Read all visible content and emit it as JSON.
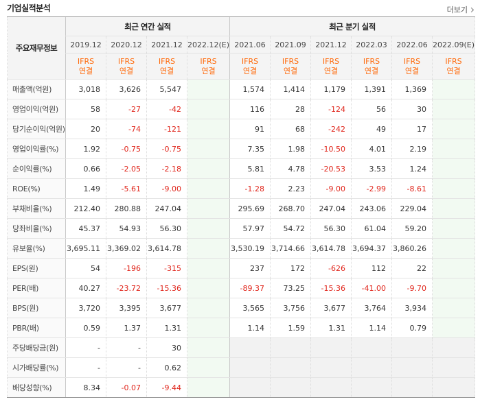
{
  "title": "기업실적분석",
  "more_label": "더보기",
  "header": {
    "row_label": "주요재무정보",
    "annual_title": "최근 연간 실적",
    "quarter_title": "최근 분기 실적",
    "annual_periods": [
      "2019.12",
      "2020.12",
      "2021.12",
      "2022.12(E)"
    ],
    "quarter_periods": [
      "2021.06",
      "2021.09",
      "2021.12",
      "2022.03",
      "2022.06",
      "2022.09(E)"
    ],
    "ifrs": "IFRS",
    "consolidated": "연결"
  },
  "rows": [
    {
      "label": "매출액(억원)",
      "annual": [
        "3,018",
        "3,626",
        "5,547",
        ""
      ],
      "quarter": [
        "1,574",
        "1,414",
        "1,179",
        "1,391",
        "1,369",
        ""
      ]
    },
    {
      "label": "영업이익(억원)",
      "annual": [
        "58",
        "-27",
        "-42",
        ""
      ],
      "quarter": [
        "116",
        "28",
        "-124",
        "56",
        "30",
        ""
      ]
    },
    {
      "label": "당기순이익(억원)",
      "annual": [
        "20",
        "-74",
        "-121",
        ""
      ],
      "quarter": [
        "91",
        "68",
        "-242",
        "49",
        "17",
        ""
      ]
    },
    {
      "label": "영업이익률(%)",
      "annual": [
        "1.92",
        "-0.75",
        "-0.75",
        ""
      ],
      "quarter": [
        "7.35",
        "1.98",
        "-10.50",
        "4.01",
        "2.19",
        ""
      ]
    },
    {
      "label": "순이익률(%)",
      "annual": [
        "0.66",
        "-2.05",
        "-2.18",
        ""
      ],
      "quarter": [
        "5.81",
        "4.78",
        "-20.53",
        "3.53",
        "1.24",
        ""
      ]
    },
    {
      "label": "ROE(%)",
      "annual": [
        "1.49",
        "-5.61",
        "-9.00",
        ""
      ],
      "quarter": [
        "-1.28",
        "2.23",
        "-9.00",
        "-2.99",
        "-8.61",
        ""
      ]
    },
    {
      "label": "부채비율(%)",
      "annual": [
        "212.40",
        "280.88",
        "247.04",
        ""
      ],
      "quarter": [
        "295.69",
        "268.70",
        "247.04",
        "243.06",
        "229.04",
        ""
      ]
    },
    {
      "label": "당좌비율(%)",
      "annual": [
        "45.37",
        "54.93",
        "56.30",
        ""
      ],
      "quarter": [
        "57.97",
        "54.72",
        "56.30",
        "61.04",
        "59.20",
        ""
      ]
    },
    {
      "label": "유보율(%)",
      "annual": [
        "3,695.11",
        "3,369.02",
        "3,614.78",
        ""
      ],
      "quarter": [
        "3,530.19",
        "3,714.66",
        "3,614.78",
        "3,694.37",
        "3,860.26",
        ""
      ]
    },
    {
      "label": "EPS(원)",
      "annual": [
        "54",
        "-196",
        "-315",
        ""
      ],
      "quarter": [
        "237",
        "172",
        "-626",
        "112",
        "22",
        ""
      ]
    },
    {
      "label": "PER(배)",
      "annual": [
        "40.27",
        "-23.72",
        "-15.36",
        ""
      ],
      "quarter": [
        "-89.37",
        "73.25",
        "-15.36",
        "-41.00",
        "-9.70",
        ""
      ]
    },
    {
      "label": "BPS(원)",
      "annual": [
        "3,720",
        "3,395",
        "3,677",
        ""
      ],
      "quarter": [
        "3,565",
        "3,756",
        "3,677",
        "3,764",
        "3,934",
        ""
      ]
    },
    {
      "label": "PBR(배)",
      "annual": [
        "0.59",
        "1.37",
        "1.31",
        ""
      ],
      "quarter": [
        "1.14",
        "1.59",
        "1.31",
        "1.14",
        "0.79",
        ""
      ]
    },
    {
      "label": "주당배당금(원)",
      "annual": [
        "-",
        "-",
        "30",
        ""
      ],
      "quarter": null
    },
    {
      "label": "시가배당률(%)",
      "annual": [
        "-",
        "-",
        "0.62",
        ""
      ],
      "quarter": null
    },
    {
      "label": "배당성향(%)",
      "annual": [
        "8.34",
        "-0.07",
        "-9.44",
        ""
      ],
      "quarter": null
    }
  ],
  "colors": {
    "negative": "#e0251b",
    "ifrs": "#ff6a0b",
    "estimate": "#2e8b57"
  }
}
